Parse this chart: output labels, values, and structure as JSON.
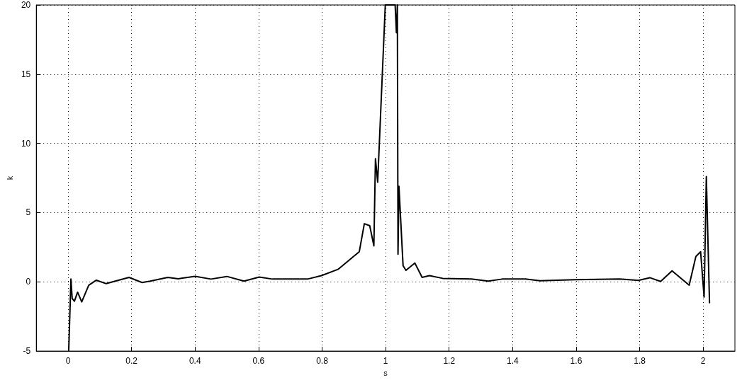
{
  "chart_data": {
    "type": "line",
    "xlabel": "s",
    "ylabel": "k",
    "xlim": [
      -0.1,
      2.1
    ],
    "xticks": [
      0,
      0.2,
      0.4,
      0.6,
      0.8,
      1,
      1.2,
      1.4,
      1.6,
      1.8,
      2
    ],
    "ylim": [
      -5,
      20
    ],
    "yticks": [
      -5,
      0,
      5,
      10,
      15,
      20
    ],
    "grid": true,
    "marker": "none",
    "line_style": "solid",
    "series": [
      {
        "color": "#000000",
        "x": [
          0.002,
          0.009,
          0.013,
          0.02,
          0.03,
          0.043,
          0.065,
          0.089,
          0.12,
          0.192,
          0.233,
          0.259,
          0.314,
          0.347,
          0.4,
          0.45,
          0.5,
          0.554,
          0.602,
          0.643,
          0.754,
          0.798,
          0.85,
          0.917,
          0.933,
          0.95,
          0.963,
          0.968,
          0.975,
          0.999,
          1.03,
          1.034,
          1.037,
          1.039,
          1.042,
          1.055,
          1.064,
          1.092,
          1.115,
          1.138,
          1.18,
          1.27,
          1.323,
          1.367,
          1.44,
          1.486,
          1.596,
          1.737,
          1.796,
          1.832,
          1.866,
          1.902,
          1.956,
          1.977,
          1.992,
          2.003,
          2.01,
          2.02
        ],
        "values": [
          -5,
          0.2,
          -1.2,
          -1.4,
          -0.75,
          -1.45,
          -0.25,
          0.12,
          -0.13,
          0.32,
          -0.05,
          0.05,
          0.32,
          0.22,
          0.4,
          0.2,
          0.39,
          0.05,
          0.35,
          0.2,
          0.2,
          0.45,
          0.9,
          2.17,
          4.2,
          4.05,
          2.6,
          8.9,
          7.2,
          20,
          20,
          18,
          20,
          2,
          6.9,
          1.16,
          0.83,
          1.36,
          0.32,
          0.45,
          0.25,
          0.2,
          0.05,
          0.2,
          0.2,
          0.08,
          0.15,
          0.2,
          0.1,
          0.3,
          0.03,
          0.79,
          -0.24,
          1.83,
          2.17,
          -1.1,
          7.6,
          -1.5
        ]
      }
    ]
  }
}
